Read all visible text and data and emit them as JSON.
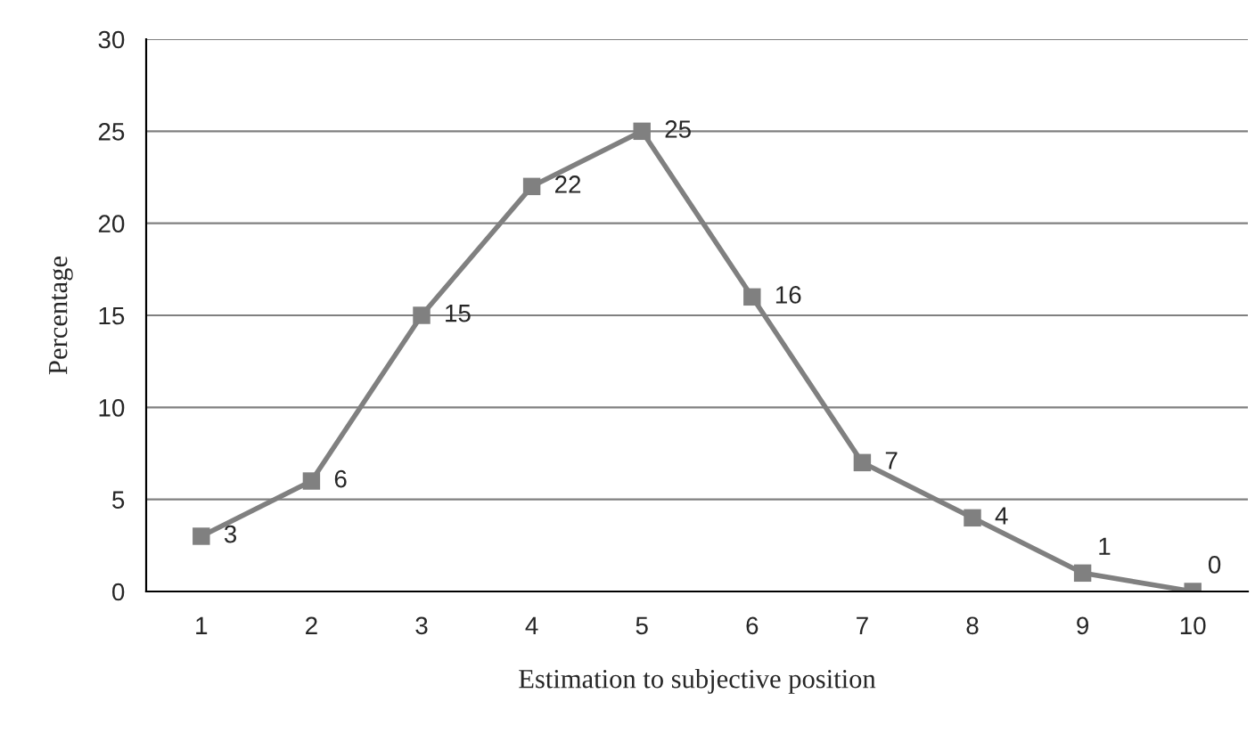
{
  "chart_data": {
    "type": "line",
    "xlabel": "Estimation to subjective position",
    "ylabel": "Percentage",
    "categories": [
      "1",
      "2",
      "3",
      "4",
      "5",
      "6",
      "7",
      "8",
      "9",
      "10"
    ],
    "series": [
      {
        "color": "#808080",
        "values": [
          3,
          6,
          15,
          22,
          25,
          16,
          7,
          4,
          1,
          0
        ]
      }
    ],
    "ylim": [
      0,
      30
    ],
    "yticks": [
      0,
      5,
      10,
      15,
      20,
      25,
      30
    ],
    "grid": "y",
    "marker": "square",
    "line_style": "solid",
    "data_labels": true
  }
}
